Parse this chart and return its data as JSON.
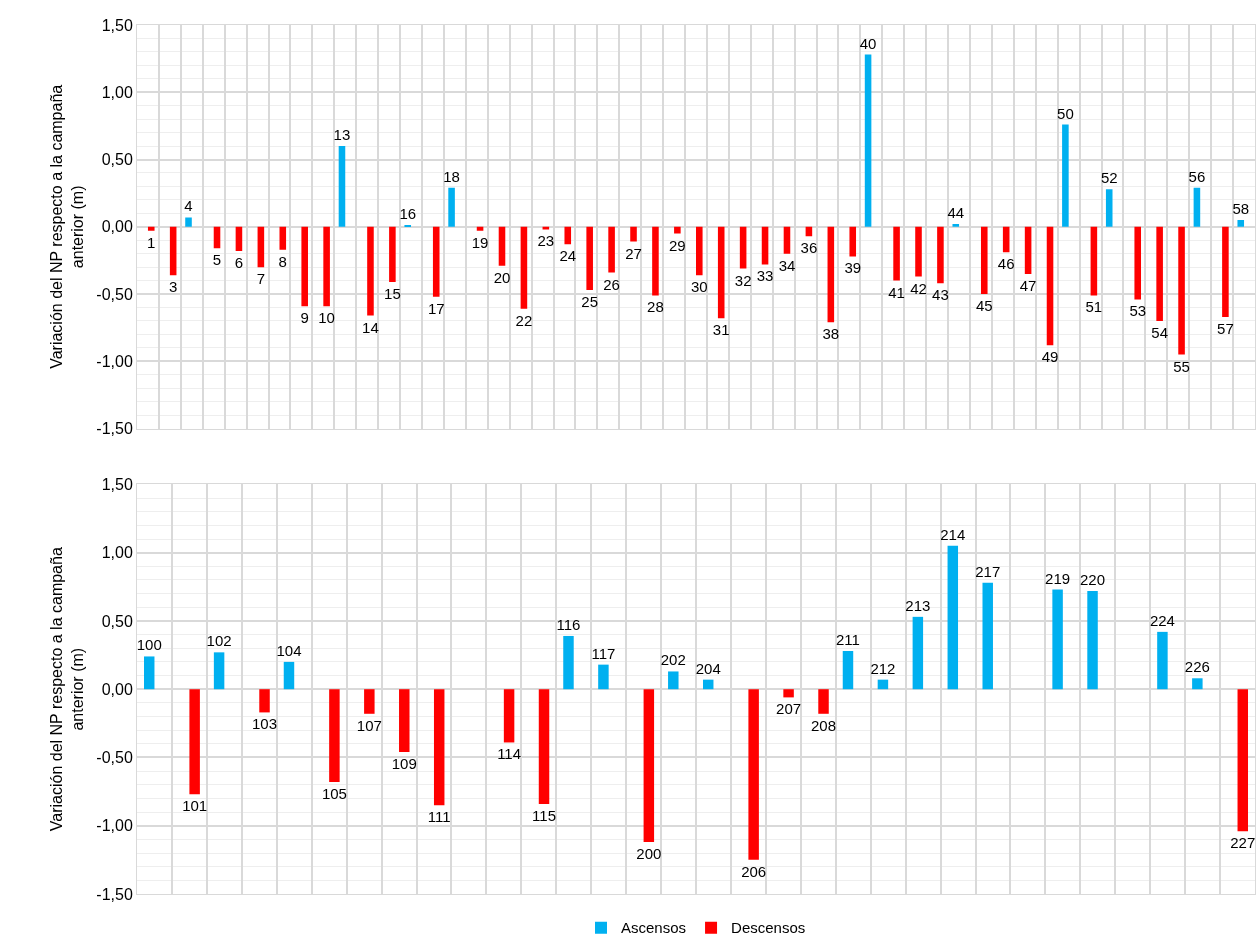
{
  "chart_data": [
    {
      "type": "bar",
      "ylabel": "Variación del NP respecto a la campaña anterior (m)",
      "tick_labels": "y",
      "grid": true,
      "legend": "bottom",
      "categories": [
        "1",
        "3",
        "4",
        "5",
        "6",
        "7",
        "8",
        "9",
        "10",
        "13",
        "14",
        "15",
        "16",
        "17",
        "18",
        "19",
        "20",
        "22",
        "23",
        "24",
        "25",
        "26",
        "27",
        "28",
        "29",
        "30",
        "31",
        "32",
        "33",
        "34",
        "36",
        "38",
        "39",
        "40",
        "41",
        "42",
        "43",
        "44",
        "45",
        "46",
        "47",
        "49",
        "50",
        "51",
        "52",
        "53",
        "54",
        "55",
        "56",
        "57",
        "58"
      ],
      "series": [
        {
          "name": "Ascensos",
          "color": "#00b0f0",
          "values": [
            null,
            null,
            0.07,
            null,
            null,
            null,
            null,
            null,
            null,
            0.6,
            null,
            null,
            0.01,
            null,
            0.29,
            null,
            null,
            null,
            null,
            null,
            null,
            null,
            null,
            null,
            null,
            null,
            null,
            null,
            null,
            null,
            null,
            null,
            null,
            1.28,
            null,
            null,
            null,
            0.02,
            null,
            null,
            null,
            null,
            0.76,
            null,
            0.28,
            null,
            null,
            null,
            0.29,
            null,
            0.05
          ]
        },
        {
          "name": "Descensos",
          "color": "#ff0000",
          "values": [
            -0.03,
            -0.36,
            null,
            -0.16,
            -0.18,
            -0.3,
            -0.17,
            -0.59,
            -0.59,
            null,
            -0.66,
            -0.41,
            null,
            -0.52,
            null,
            -0.03,
            -0.29,
            -0.61,
            -0.02,
            -0.13,
            -0.47,
            -0.34,
            -0.11,
            -0.51,
            -0.05,
            -0.36,
            -0.68,
            -0.31,
            -0.28,
            -0.2,
            -0.07,
            -0.71,
            -0.22,
            null,
            -0.4,
            -0.37,
            -0.42,
            null,
            -0.5,
            -0.19,
            -0.35,
            -0.88,
            null,
            -0.51,
            null,
            -0.54,
            -0.7,
            -0.95,
            null,
            -0.67,
            null
          ]
        }
      ],
      "ylim": [
        -1.5,
        1.5
      ],
      "yticks": [
        {
          "value": -1.5,
          "label": "-1,50"
        },
        {
          "value": -1.0,
          "label": "-1,00"
        },
        {
          "value": -0.5,
          "label": "-0,50"
        },
        {
          "value": 0,
          "label": "0,00"
        },
        {
          "value": 0.5,
          "label": "0,50"
        },
        {
          "value": 1.0,
          "label": "1,00"
        },
        {
          "value": 1.5,
          "label": "1,50"
        }
      ]
    },
    {
      "type": "bar",
      "ylabel": "Variación del NP respecto a la campaña anterior (m)",
      "tick_labels": "y",
      "grid": true,
      "legend": "bottom",
      "categories": [
        "100",
        "101",
        "102",
        "103",
        "104",
        "105",
        "107",
        "109",
        "111",
        null,
        "114",
        "115",
        "116",
        "117",
        "200",
        "202",
        "204",
        "206",
        "207",
        "208",
        "211",
        "212",
        "213",
        "214",
        "217",
        null,
        "219",
        "220",
        null,
        "224",
        "226",
        "227"
      ],
      "series": [
        {
          "name": "Ascensos",
          "color": "#00b0f0",
          "values": [
            0.24,
            null,
            0.27,
            null,
            0.2,
            null,
            null,
            null,
            null,
            null,
            null,
            null,
            0.39,
            0.18,
            null,
            0.13,
            0.07,
            null,
            null,
            null,
            0.28,
            0.07,
            0.53,
            1.05,
            0.78,
            null,
            0.73,
            0.72,
            null,
            0.42,
            0.08,
            null
          ]
        },
        {
          "name": "Descensos",
          "color": "#ff0000",
          "values": [
            null,
            -0.77,
            null,
            -0.17,
            null,
            -0.68,
            -0.18,
            -0.46,
            -0.85,
            null,
            -0.39,
            -0.84,
            null,
            null,
            -1.12,
            null,
            null,
            -1.25,
            -0.06,
            -0.18,
            null,
            null,
            null,
            null,
            null,
            null,
            null,
            null,
            null,
            null,
            null,
            -1.04
          ]
        }
      ],
      "ylim": [
        -1.5,
        1.5
      ],
      "yticks": [
        {
          "value": -1.5,
          "label": "-1,50"
        },
        {
          "value": -1.0,
          "label": "-1,00"
        },
        {
          "value": -0.5,
          "label": "-0,50"
        },
        {
          "value": 0,
          "label": "0,00"
        },
        {
          "value": 0.5,
          "label": "0,50"
        },
        {
          "value": 1.0,
          "label": "1,00"
        },
        {
          "value": 1.5,
          "label": "1,50"
        }
      ]
    }
  ]
}
